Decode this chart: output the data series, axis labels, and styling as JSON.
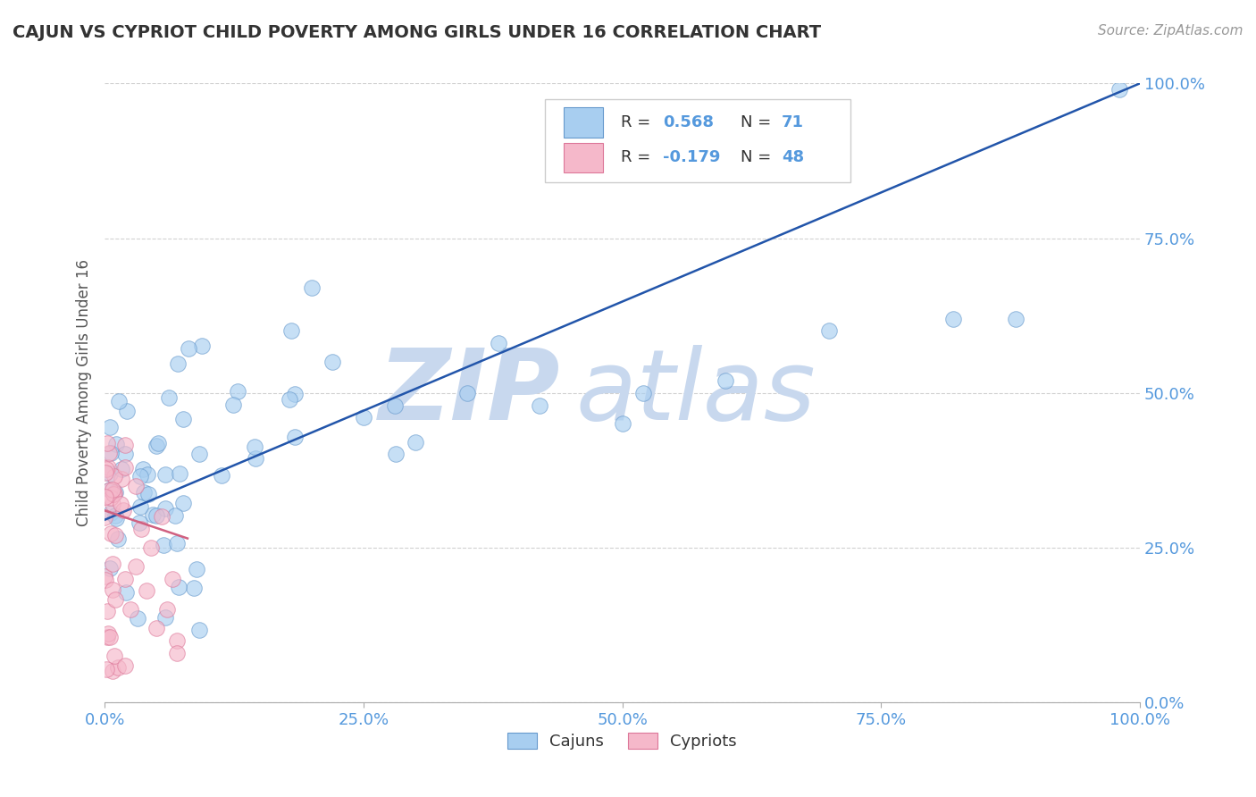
{
  "title": "CAJUN VS CYPRIOT CHILD POVERTY AMONG GIRLS UNDER 16 CORRELATION CHART",
  "source": "Source: ZipAtlas.com",
  "ylabel": "Child Poverty Among Girls Under 16",
  "xlim": [
    0,
    1
  ],
  "ylim": [
    0,
    1
  ],
  "xticks": [
    0.0,
    0.25,
    0.5,
    0.75,
    1.0
  ],
  "yticks": [
    0.0,
    0.25,
    0.5,
    0.75,
    1.0
  ],
  "xticklabels": [
    "0.0%",
    "25.0%",
    "50.0%",
    "75.0%",
    "100.0%"
  ],
  "yticklabels": [
    "0.0%",
    "25.0%",
    "50.0%",
    "75.0%",
    "100.0%"
  ],
  "cajun_color": "#A8CEF0",
  "cypriot_color": "#F5B8CA",
  "cajun_edge": "#6699CC",
  "cypriot_edge": "#DD7799",
  "trend_cajun_color": "#2255AA",
  "trend_cypriot_color": "#D06080",
  "cajun_R": 0.568,
  "cajun_N": 71,
  "cypriot_R": -0.179,
  "cypriot_N": 48,
  "watermark_zip": "ZIP",
  "watermark_atlas": "atlas",
  "watermark_color": "#C8D8EE",
  "grid_color": "#CCCCCC",
  "background_color": "#FFFFFF",
  "title_color": "#333333",
  "axis_label_color": "#555555",
  "tick_color": "#5599DD",
  "cajun_trend_x0": 0.0,
  "cajun_trend_y0": 0.295,
  "cajun_trend_x1": 1.0,
  "cajun_trend_y1": 1.0,
  "cypriot_trend_x0": 0.0,
  "cypriot_trend_y0": 0.31,
  "cypriot_trend_x1": 0.08,
  "cypriot_trend_y1": 0.265
}
